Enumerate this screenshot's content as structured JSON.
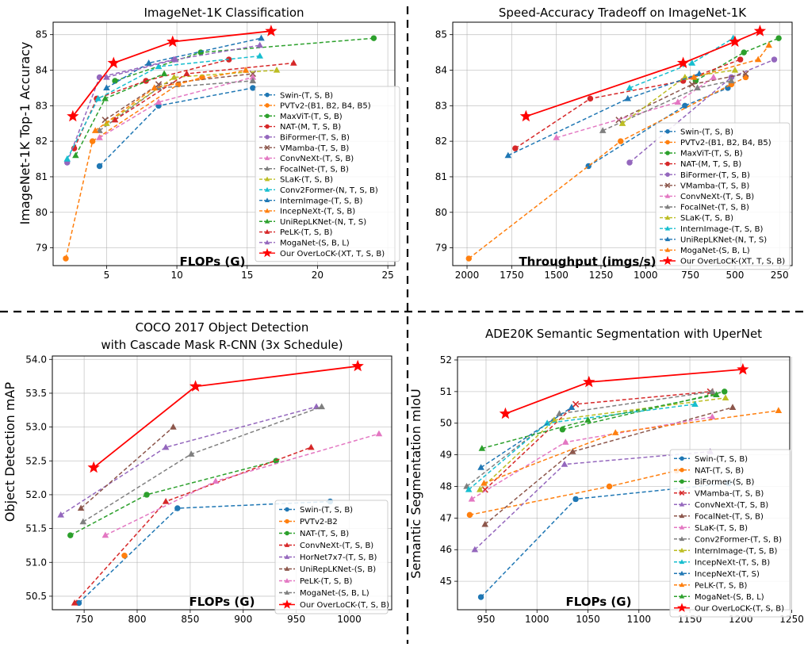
{
  "colors": {
    "c0": "#1f77b4",
    "c1": "#ff7f0e",
    "c2": "#2ca02c",
    "c3": "#d62728",
    "c4": "#9467bd",
    "c5": "#8c564b",
    "c6": "#e377c2",
    "c7": "#7f7f7f",
    "c8": "#bcbd22",
    "c9": "#17becf",
    "ours": "#ff0000"
  },
  "chart_data": [
    {
      "type": "line",
      "title": "ImageNet-1K Classification",
      "xlabel": "FLOPs (G)",
      "ylabel": "ImageNet-1K Top-1 Accuracy",
      "xlim": [
        1.2,
        25.5
      ],
      "ylim": [
        78.5,
        85.35
      ],
      "xticks": [
        5,
        10,
        15,
        20,
        25
      ],
      "yticks": [
        79,
        80,
        81,
        82,
        83,
        84,
        85
      ],
      "grid": true,
      "legend": "lower-right",
      "series": [
        {
          "name": "Swin-(T, S, B)",
          "color": "c0",
          "marker": "o",
          "x": [
            4.5,
            8.7,
            15.4
          ],
          "y": [
            81.3,
            83.0,
            83.5
          ]
        },
        {
          "name": "PVTv2-(B1, B2, B4, B5)",
          "color": "c1",
          "marker": "o",
          "x": [
            2.1,
            4.0,
            10.1,
            11.8
          ],
          "y": [
            78.7,
            82.0,
            83.6,
            83.8
          ]
        },
        {
          "name": "MaxViT-(T, S, B)",
          "color": "c2",
          "marker": "o",
          "x": [
            5.6,
            11.7,
            24.0
          ],
          "y": [
            83.7,
            84.5,
            84.9
          ]
        },
        {
          "name": "NAT-(M, T, S, B)",
          "color": "c3",
          "marker": "o",
          "x": [
            2.7,
            4.3,
            7.8,
            13.7
          ],
          "y": [
            81.8,
            83.2,
            83.7,
            84.3
          ]
        },
        {
          "name": "BiFormer-(T, S, B)",
          "color": "c4",
          "marker": "o",
          "x": [
            2.2,
            4.5,
            9.8
          ],
          "y": [
            81.4,
            83.8,
            84.3
          ]
        },
        {
          "name": "VMamba-(T, S, B)",
          "color": "c5",
          "marker": "x",
          "x": [
            4.9,
            8.7,
            15.4
          ],
          "y": [
            82.6,
            83.6,
            83.9
          ]
        },
        {
          "name": "ConvNeXt-(T, S, B)",
          "color": "c6",
          "marker": "^",
          "x": [
            4.5,
            8.7,
            15.4
          ],
          "y": [
            82.1,
            83.1,
            83.8
          ]
        },
        {
          "name": "FocalNet-(T, S, B)",
          "color": "c7",
          "marker": "^",
          "x": [
            4.5,
            8.7,
            15.4
          ],
          "y": [
            82.3,
            83.5,
            83.7
          ]
        },
        {
          "name": "SLaK-(T, S, B)",
          "color": "c8",
          "marker": "^",
          "x": [
            5.0,
            9.8,
            17.1
          ],
          "y": [
            82.5,
            83.8,
            84.0
          ]
        },
        {
          "name": "Conv2Former-(N, T, S, B)",
          "color": "c9",
          "marker": "^",
          "x": [
            2.2,
            4.4,
            8.7,
            15.9
          ],
          "y": [
            81.5,
            83.2,
            84.1,
            84.4
          ]
        },
        {
          "name": "InternImage-(T, S, B)",
          "color": "c0",
          "marker": "^",
          "x": [
            5.0,
            8.0,
            16.0
          ],
          "y": [
            83.5,
            84.2,
            84.9
          ]
        },
        {
          "name": "IncepNeXt-(T, S, B)",
          "color": "c1",
          "marker": "^",
          "x": [
            4.2,
            8.4,
            14.9
          ],
          "y": [
            82.3,
            83.5,
            84.0
          ]
        },
        {
          "name": "UniRepLKNet-(N, T, S)",
          "color": "c2",
          "marker": "^",
          "x": [
            2.8,
            4.9,
            9.1
          ],
          "y": [
            81.6,
            83.2,
            83.9
          ]
        },
        {
          "name": "PeLK-(T, S, B)",
          "color": "c3",
          "marker": "^",
          "x": [
            5.6,
            10.7,
            18.3
          ],
          "y": [
            82.6,
            83.9,
            84.2
          ]
        },
        {
          "name": "MogaNet-(S, B, L)",
          "color": "c4",
          "marker": "^",
          "x": [
            5.0,
            9.9,
            15.9
          ],
          "y": [
            83.8,
            84.3,
            84.7
          ]
        },
        {
          "name": "Our OverLoCK-(XT, T, S, B)",
          "color": "ours",
          "marker": "*",
          "x": [
            2.6,
            5.5,
            9.7,
            16.7
          ],
          "y": [
            82.7,
            84.2,
            84.8,
            85.1
          ]
        }
      ]
    },
    {
      "type": "line",
      "title": "Speed-Accuracy Tradeoff on ImageNet-1K",
      "xlabel": "Throughput (imgs/s)",
      "ylabel": "",
      "xlim": [
        2080,
        180
      ],
      "ylim": [
        78.5,
        85.35
      ],
      "xticks": [
        2000,
        1750,
        1500,
        1250,
        1000,
        750,
        500,
        250
      ],
      "yticks": [
        79,
        80,
        81,
        82,
        83,
        84,
        85
      ],
      "grid": true,
      "legend": "lower-right",
      "series": [
        {
          "name": "Swin-(T, S, B)",
          "color": "c0",
          "marker": "o",
          "x": [
            1320,
            780,
            540
          ],
          "y": [
            81.3,
            83.0,
            83.5
          ]
        },
        {
          "name": "PVTv2-(B1, B2, B4, B5)",
          "color": "c1",
          "marker": "o",
          "x": [
            1990,
            1140,
            520,
            440
          ],
          "y": [
            78.7,
            82.0,
            83.6,
            83.8
          ]
        },
        {
          "name": "MaxViT-(T, S, B)",
          "color": "c2",
          "marker": "o",
          "x": [
            720,
            450,
            255
          ],
          "y": [
            83.7,
            84.5,
            84.9
          ]
        },
        {
          "name": "NAT-(M, T, S, B)",
          "color": "c3",
          "marker": "o",
          "x": [
            1730,
            1310,
            790,
            470
          ],
          "y": [
            81.8,
            83.2,
            83.7,
            84.3
          ]
        },
        {
          "name": "BiFormer-(T, S, B)",
          "color": "c4",
          "marker": "o",
          "x": [
            1090,
            520,
            280
          ],
          "y": [
            81.4,
            83.8,
            84.3
          ]
        },
        {
          "name": "VMamba-(T, S, B)",
          "color": "c5",
          "marker": "x",
          "x": [
            1150,
            740,
            440
          ],
          "y": [
            82.6,
            83.6,
            83.9
          ]
        },
        {
          "name": "ConvNeXt-(T, S, B)",
          "color": "c6",
          "marker": "^",
          "x": [
            1500,
            820,
            620
          ],
          "y": [
            82.1,
            83.1,
            83.8
          ]
        },
        {
          "name": "FocalNet-(T, S, B)",
          "color": "c7",
          "marker": "^",
          "x": [
            1240,
            710,
            520
          ],
          "y": [
            82.3,
            83.5,
            83.7
          ]
        },
        {
          "name": "SLaK-(T, S, B)",
          "color": "c8",
          "marker": "^",
          "x": [
            1130,
            780,
            500
          ],
          "y": [
            82.5,
            83.8,
            84.0
          ]
        },
        {
          "name": "InternImage-(T, S, B)",
          "color": "c9",
          "marker": "^",
          "x": [
            1090,
            740,
            510
          ],
          "y": [
            83.5,
            84.2,
            84.9
          ]
        },
        {
          "name": "UniRepLKNet-(N, T, S)",
          "color": "c0",
          "marker": "^",
          "x": [
            1770,
            1100,
            700
          ],
          "y": [
            81.6,
            83.2,
            83.9
          ]
        },
        {
          "name": "MogaNet-(S, B, L)",
          "color": "c1",
          "marker": "^",
          "x": [
            730,
            370,
            310
          ],
          "y": [
            83.8,
            84.3,
            84.7
          ]
        },
        {
          "name": "Our OverLoCK-(XT, T, S, B)",
          "color": "ours",
          "marker": "*",
          "x": [
            1670,
            790,
            500,
            360
          ],
          "y": [
            82.7,
            84.2,
            84.8,
            85.1
          ]
        }
      ]
    },
    {
      "type": "line",
      "title": "COCO 2017 Object Detection",
      "subtitle": "with Cascade Mask R-CNN (3x Schedule)",
      "xlabel": "FLOPs (G)",
      "ylabel": "Object Detection mAP",
      "xlim": [
        720,
        1040
      ],
      "ylim": [
        50.3,
        54.05
      ],
      "xticks": [
        750,
        800,
        850,
        900,
        950,
        1000
      ],
      "yticks": [
        50.5,
        51.0,
        51.5,
        52.0,
        52.5,
        53.0,
        53.5,
        54.0
      ],
      "grid": true,
      "legend": "lower-right",
      "series": [
        {
          "name": "Swin-(T, S, B)",
          "color": "c0",
          "marker": "o",
          "x": [
            745,
            838,
            982
          ],
          "y": [
            50.4,
            51.8,
            51.9
          ]
        },
        {
          "name": "PVTv2-B2",
          "color": "c1",
          "marker": "o",
          "x": [
            788
          ],
          "y": [
            51.1
          ]
        },
        {
          "name": "NAT-(T, S, B)",
          "color": "c2",
          "marker": "o",
          "x": [
            737,
            809,
            931
          ],
          "y": [
            51.4,
            52.0,
            52.5
          ]
        },
        {
          "name": "ConvNeXt-(T, S, B)",
          "color": "c3",
          "marker": "^",
          "x": [
            741,
            827,
            964
          ],
          "y": [
            50.4,
            51.9,
            52.7
          ]
        },
        {
          "name": "HorNet7x7-(T, S, B)",
          "color": "c4",
          "marker": "^",
          "x": [
            728,
            827,
            969
          ],
          "y": [
            51.7,
            52.7,
            53.3
          ]
        },
        {
          "name": "UniRepLKNet-(S, B)",
          "color": "c5",
          "marker": "^",
          "x": [
            747,
            834
          ],
          "y": [
            51.8,
            53.0
          ]
        },
        {
          "name": "PeLK-(T, S, B)",
          "color": "c6",
          "marker": "^",
          "x": [
            770,
            874,
            1028
          ],
          "y": [
            51.4,
            52.2,
            52.9
          ]
        },
        {
          "name": "MogaNet-(S, B, L)",
          "color": "c7",
          "marker": "^",
          "x": [
            749,
            851,
            974
          ],
          "y": [
            51.6,
            52.6,
            53.3
          ]
        },
        {
          "name": "Our OverLoCK-(T, S, B)",
          "color": "ours",
          "marker": "*",
          "x": [
            759,
            855,
            1008
          ],
          "y": [
            52.4,
            53.6,
            53.9
          ]
        }
      ]
    },
    {
      "type": "line",
      "title": "ADE20K Semantic Segmentation with UperNet",
      "xlabel": "FLOPs (G)",
      "ylabel": "Semantic Segmentation mIoU",
      "xlim": [
        922,
        1248
      ],
      "ylim": [
        44.1,
        52.1
      ],
      "xticks": [
        950,
        1000,
        1050,
        1100,
        1150,
        1200,
        1250
      ],
      "yticks": [
        45,
        46,
        47,
        48,
        49,
        50,
        51,
        52
      ],
      "grid": true,
      "legend": "lower-right",
      "series": [
        {
          "name": "Swin-(T, S, B)",
          "color": "c0",
          "marker": "o",
          "x": [
            945,
            1038,
            1188
          ],
          "y": [
            44.5,
            47.6,
            48.1
          ]
        },
        {
          "name": "NAT-(T, S, B)",
          "color": "c1",
          "marker": "o",
          "x": [
            934,
            1071,
            1137
          ],
          "y": [
            47.1,
            48.0,
            48.5
          ]
        },
        {
          "name": "BiFormer-(S, B)",
          "color": "c2",
          "marker": "o",
          "x": [
            1025,
            1184
          ],
          "y": [
            49.8,
            51.0
          ]
        },
        {
          "name": "VMamba-(T, S, B)",
          "color": "c3",
          "marker": "x",
          "x": [
            949,
            1038,
            1170
          ],
          "y": [
            47.9,
            50.6,
            51.0
          ]
        },
        {
          "name": "ConvNeXt-(T, S, B)",
          "color": "c4",
          "marker": "^",
          "x": [
            939,
            1027,
            1170
          ],
          "y": [
            46.0,
            48.7,
            49.1
          ]
        },
        {
          "name": "FocalNet-(T, S, B)",
          "color": "c5",
          "marker": "^",
          "x": [
            949,
            1035,
            1192
          ],
          "y": [
            46.8,
            49.1,
            50.5
          ]
        },
        {
          "name": "SLaK-(T, S, B)",
          "color": "c6",
          "marker": "^",
          "x": [
            936,
            1028,
            1172
          ],
          "y": [
            47.6,
            49.4,
            50.2
          ]
        },
        {
          "name": "Conv2Former-(T, S, B)",
          "color": "c7",
          "marker": "^",
          "x": [
            931,
            1022,
            1172
          ],
          "y": [
            48.0,
            50.3,
            51.0
          ]
        },
        {
          "name": "InternImage-(T, S, B)",
          "color": "c8",
          "marker": "^",
          "x": [
            944,
            1017,
            1185
          ],
          "y": [
            47.9,
            50.1,
            50.8
          ]
        },
        {
          "name": "IncepNeXt-(T, S, B)",
          "color": "c9",
          "marker": "^",
          "x": [
            933,
            1010,
            1155
          ],
          "y": [
            47.9,
            50.0,
            50.6
          ]
        },
        {
          "name": "IncepNeXt-(T, S)",
          "color": "c0",
          "marker": "^",
          "x": [
            945,
            1034
          ],
          "y": [
            48.6,
            50.5
          ]
        },
        {
          "name": "PeLK-(T, S, B)",
          "color": "c1",
          "marker": "^",
          "x": [
            948,
            1077,
            1237
          ],
          "y": [
            48.1,
            49.7,
            50.4
          ]
        },
        {
          "name": "MogaNet-(S, B, L)",
          "color": "c2",
          "marker": "^",
          "x": [
            946,
            1050,
            1176
          ],
          "y": [
            49.2,
            50.1,
            50.9
          ]
        },
        {
          "name": "Our OverLoCK-(T, S, B)",
          "color": "ours",
          "marker": "*",
          "x": [
            969,
            1051,
            1202
          ],
          "y": [
            50.3,
            51.3,
            51.7
          ]
        }
      ]
    }
  ]
}
